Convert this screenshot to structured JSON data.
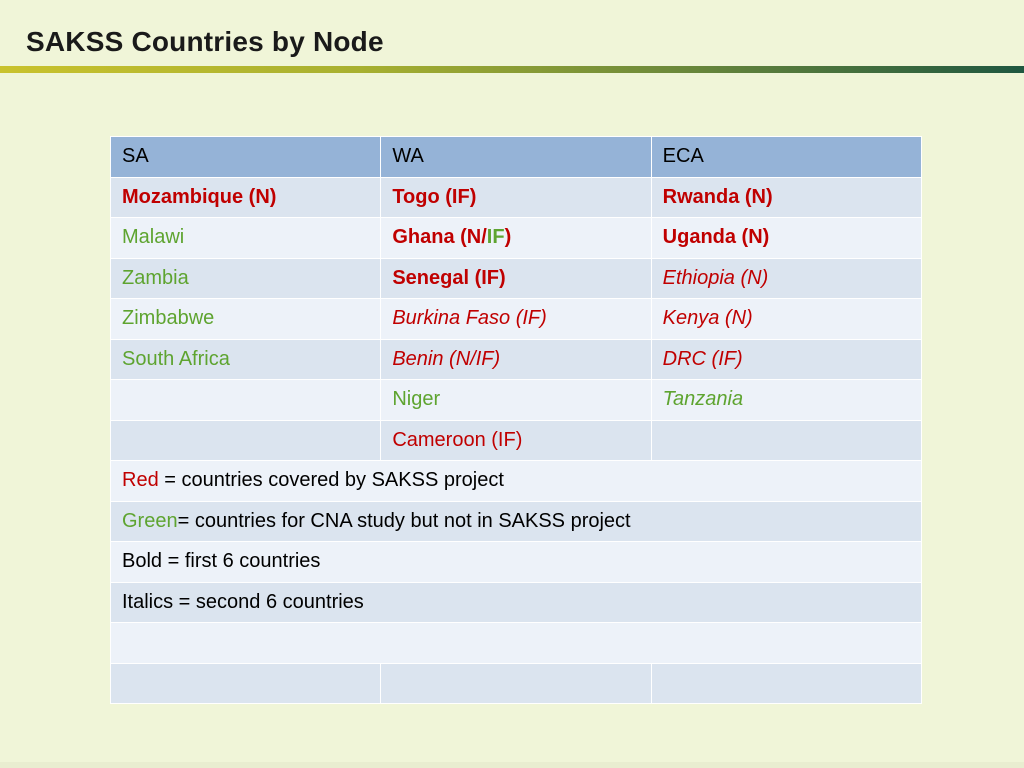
{
  "title": "SAKSS Countries by Node",
  "table": {
    "headers": [
      "SA",
      "WA",
      "ECA"
    ],
    "rows": [
      {
        "sa": "Mozambique (N)",
        "wa": "Togo (IF)",
        "eca": "Rwanda (N)"
      },
      {
        "sa": "Malawi",
        "wa_prefix": "Ghana (N/",
        "wa_mid": "IF",
        "wa_suffix": ")",
        "eca": "Uganda (N)"
      },
      {
        "sa": "Zambia",
        "wa": "Senegal (IF)",
        "eca": "Ethiopia (N)"
      },
      {
        "sa": "Zimbabwe",
        "wa": "Burkina Faso (IF)",
        "eca": "Kenya (N)"
      },
      {
        "sa": "South Africa",
        "wa": "Benin (N/IF)",
        "eca": "DRC (IF)"
      },
      {
        "sa": "",
        "wa": "Niger",
        "eca": "Tanzania"
      },
      {
        "sa": "",
        "wa": "Cameroon (IF)",
        "eca": ""
      }
    ],
    "legend": {
      "red_word": "Red",
      "red_text": " = countries covered by SAKSS project",
      "green_word": "Green",
      "green_text": "= countries for CNA study but not in SAKSS project",
      "bold_text": "Bold = first 6 countries",
      "italics_text": "Italics = second 6 countries"
    }
  },
  "colors": {
    "red": "#c00000",
    "green": "#5ea430",
    "header_bg": "#95b3d7",
    "row_dark": "#dbe4ef",
    "row_light": "#edf2f9",
    "background": "#f0f5d8"
  }
}
